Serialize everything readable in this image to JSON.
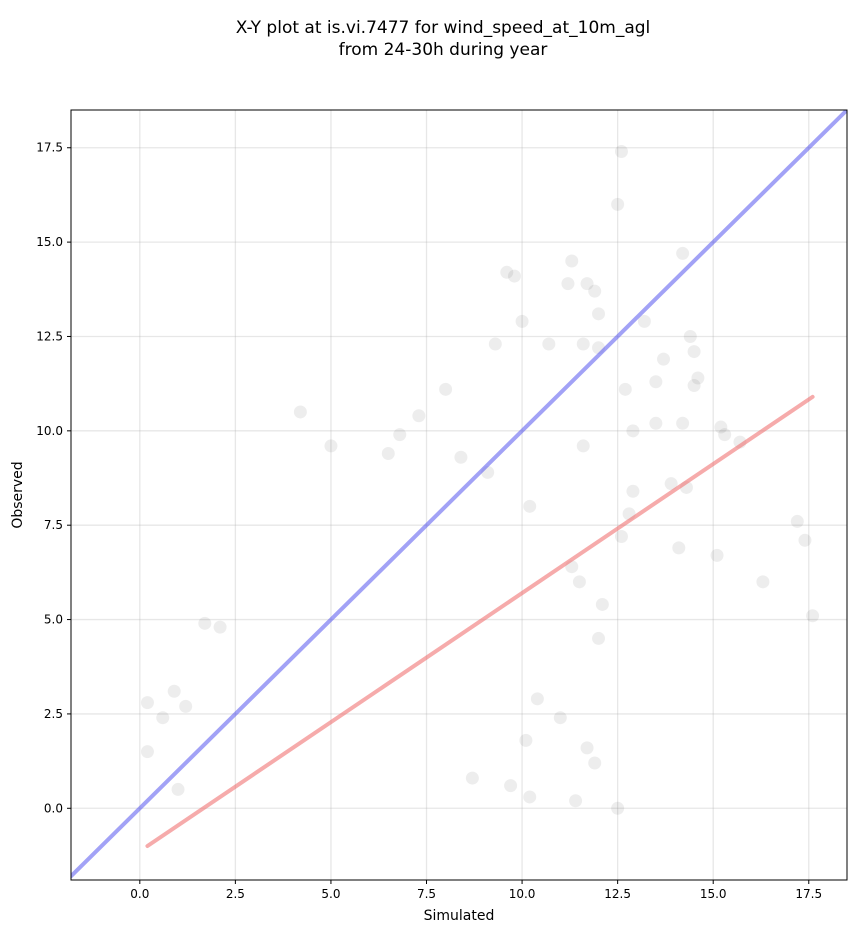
{
  "chart_data": {
    "type": "scatter",
    "title": "X-Y plot at is.vi.7477 for wind_speed_at_10m_agl",
    "subtitle": "from 24-30h during year",
    "xlabel": "Simulated",
    "ylabel": "Observed",
    "xlim": [
      -1.8,
      18.5
    ],
    "ylim": [
      -1.9,
      18.5
    ],
    "xticks": [
      "0.0",
      "2.5",
      "5.0",
      "7.5",
      "10.0",
      "12.5",
      "15.0",
      "17.5"
    ],
    "yticks": [
      "0.0",
      "2.5",
      "5.0",
      "7.5",
      "10.0",
      "12.5",
      "15.0",
      "17.5"
    ],
    "grid": true,
    "point_color": "#000000",
    "point_alpha": 0.07,
    "reference_lines": [
      {
        "kind": "identity",
        "color": "#5555ee",
        "x": [
          -1.8,
          18.5
        ],
        "y": [
          -1.8,
          18.5
        ]
      },
      {
        "kind": "fit",
        "color": "#ee6666",
        "x": [
          0.2,
          17.6
        ],
        "y": [
          -1.0,
          10.9
        ]
      }
    ],
    "points": [
      [
        12.6,
        17.4
      ],
      [
        12.5,
        16.0
      ],
      [
        9.6,
        14.2
      ],
      [
        9.8,
        14.1
      ],
      [
        11.3,
        14.5
      ],
      [
        14.2,
        14.7
      ],
      [
        11.2,
        13.9
      ],
      [
        11.7,
        13.9
      ],
      [
        11.9,
        13.7
      ],
      [
        10.0,
        12.9
      ],
      [
        12.0,
        13.1
      ],
      [
        13.2,
        12.9
      ],
      [
        14.4,
        12.5
      ],
      [
        14.5,
        12.1
      ],
      [
        12.7,
        11.1
      ],
      [
        13.7,
        11.9
      ],
      [
        12.9,
        10.0
      ],
      [
        13.5,
        10.2
      ],
      [
        14.2,
        10.2
      ],
      [
        14.6,
        11.4
      ],
      [
        14.5,
        11.2
      ],
      [
        14.3,
        8.5
      ],
      [
        13.9,
        8.6
      ],
      [
        15.2,
        10.1
      ],
      [
        15.3,
        9.9
      ],
      [
        14.1,
        6.9
      ],
      [
        15.1,
        6.7
      ],
      [
        16.3,
        6.0
      ],
      [
        17.2,
        7.6
      ],
      [
        17.4,
        7.1
      ],
      [
        17.6,
        5.1
      ],
      [
        15.7,
        9.7
      ],
      [
        12.6,
        7.2
      ],
      [
        12.8,
        7.8
      ],
      [
        12.0,
        4.5
      ],
      [
        11.9,
        1.2
      ],
      [
        11.7,
        1.6
      ],
      [
        11.4,
        0.2
      ],
      [
        12.5,
        0.0
      ],
      [
        11.0,
        2.4
      ],
      [
        10.4,
        2.9
      ],
      [
        10.1,
        1.8
      ],
      [
        10.2,
        0.3
      ],
      [
        9.7,
        0.6
      ],
      [
        8.7,
        0.8
      ],
      [
        4.2,
        10.5
      ],
      [
        5.0,
        9.6
      ],
      [
        7.3,
        10.4
      ],
      [
        8.0,
        11.1
      ],
      [
        6.5,
        9.4
      ],
      [
        2.1,
        4.8
      ],
      [
        1.7,
        4.9
      ],
      [
        0.9,
        3.1
      ],
      [
        0.2,
        2.8
      ],
      [
        0.2,
        1.5
      ],
      [
        0.6,
        2.4
      ],
      [
        1.2,
        2.7
      ],
      [
        1.0,
        0.5
      ],
      [
        11.6,
        12.3
      ],
      [
        12.0,
        12.2
      ],
      [
        11.6,
        9.6
      ],
      [
        13.5,
        11.3
      ],
      [
        12.9,
        8.4
      ],
      [
        9.3,
        12.3
      ],
      [
        10.7,
        12.3
      ],
      [
        6.8,
        9.9
      ],
      [
        8.4,
        9.3
      ],
      [
        9.1,
        8.9
      ],
      [
        10.2,
        8.0
      ],
      [
        11.3,
        6.4
      ],
      [
        11.5,
        6.0
      ],
      [
        12.1,
        5.4
      ]
    ]
  }
}
